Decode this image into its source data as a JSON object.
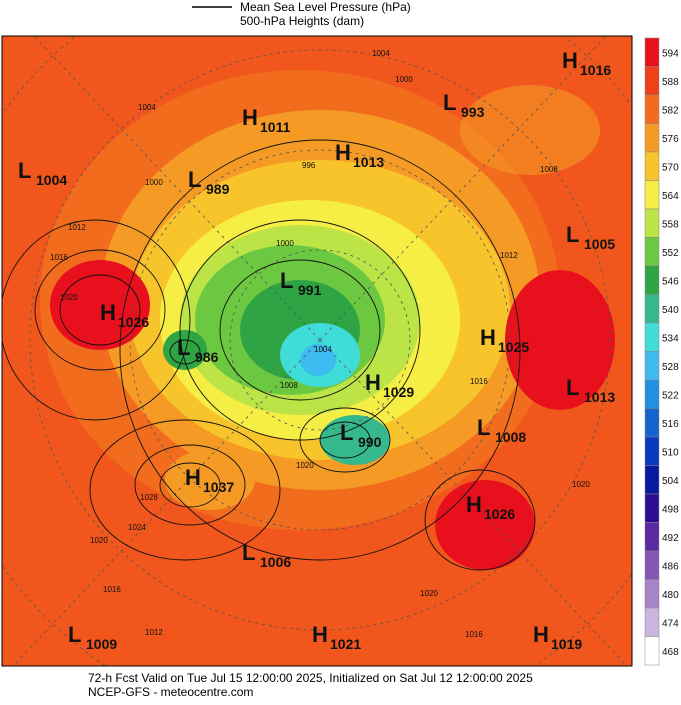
{
  "legend": {
    "pressure": "Mean Sea Level Pressure (hPa)",
    "heights": "500-hPa Heights (dam)"
  },
  "centers": [
    {
      "letter": "H",
      "value": "1016"
    },
    {
      "letter": "L",
      "value": "993"
    },
    {
      "letter": "H",
      "value": "1011"
    },
    {
      "letter": "H",
      "value": "1013"
    },
    {
      "letter": "L",
      "value": "1004"
    },
    {
      "letter": "L",
      "value": "989"
    },
    {
      "letter": "L",
      "value": "1005"
    },
    {
      "letter": "L",
      "value": "991"
    },
    {
      "letter": "H",
      "value": "1026"
    },
    {
      "letter": "L",
      "value": "986"
    },
    {
      "letter": "H",
      "value": "1025"
    },
    {
      "letter": "H",
      "value": "1029"
    },
    {
      "letter": "L",
      "value": "1013"
    },
    {
      "letter": "L",
      "value": "1008"
    },
    {
      "letter": "L",
      "value": "990"
    },
    {
      "letter": "H",
      "value": "1037"
    },
    {
      "letter": "H",
      "value": "1026"
    },
    {
      "letter": "L",
      "value": "1006"
    },
    {
      "letter": "L",
      "value": "1009"
    },
    {
      "letter": "H",
      "value": "1021"
    },
    {
      "letter": "H",
      "value": "1019"
    }
  ],
  "contour_labels": [
    "1004",
    "1000",
    "1004",
    "996",
    "1000",
    "1012",
    "1016",
    "1020",
    "1012",
    "1000",
    "1004",
    "1008",
    "1016",
    "1020",
    "1028",
    "1024",
    "1020",
    "1016",
    "1012",
    "1020",
    "1016",
    "1020",
    "1008"
  ],
  "colorbar": {
    "levels": [
      594,
      588,
      582,
      576,
      570,
      564,
      558,
      552,
      546,
      540,
      534,
      528,
      522,
      516,
      510,
      504,
      498,
      492,
      486,
      480,
      474,
      468
    ],
    "colors": [
      "#e8101c",
      "#f0401a",
      "#f26c1e",
      "#f59a24",
      "#f8c42c",
      "#f6ee44",
      "#bce446",
      "#6cc840",
      "#2ea444",
      "#34b88c",
      "#40dcd8",
      "#3cbcf0",
      "#2090e0",
      "#1464d0",
      "#0a38c0",
      "#0818a0",
      "#2c0c94",
      "#5a2aa0",
      "#8456b4",
      "#a684c8",
      "#cab4e0",
      "#ffffff"
    ]
  },
  "footer": {
    "line1": "72-h Fcst Valid on Tue Jul 15 12:00:00 2025, Initialized on Sat Jul 12 12:00:00 2025",
    "line2": "NCEP-GFS  - meteocentre.com"
  }
}
